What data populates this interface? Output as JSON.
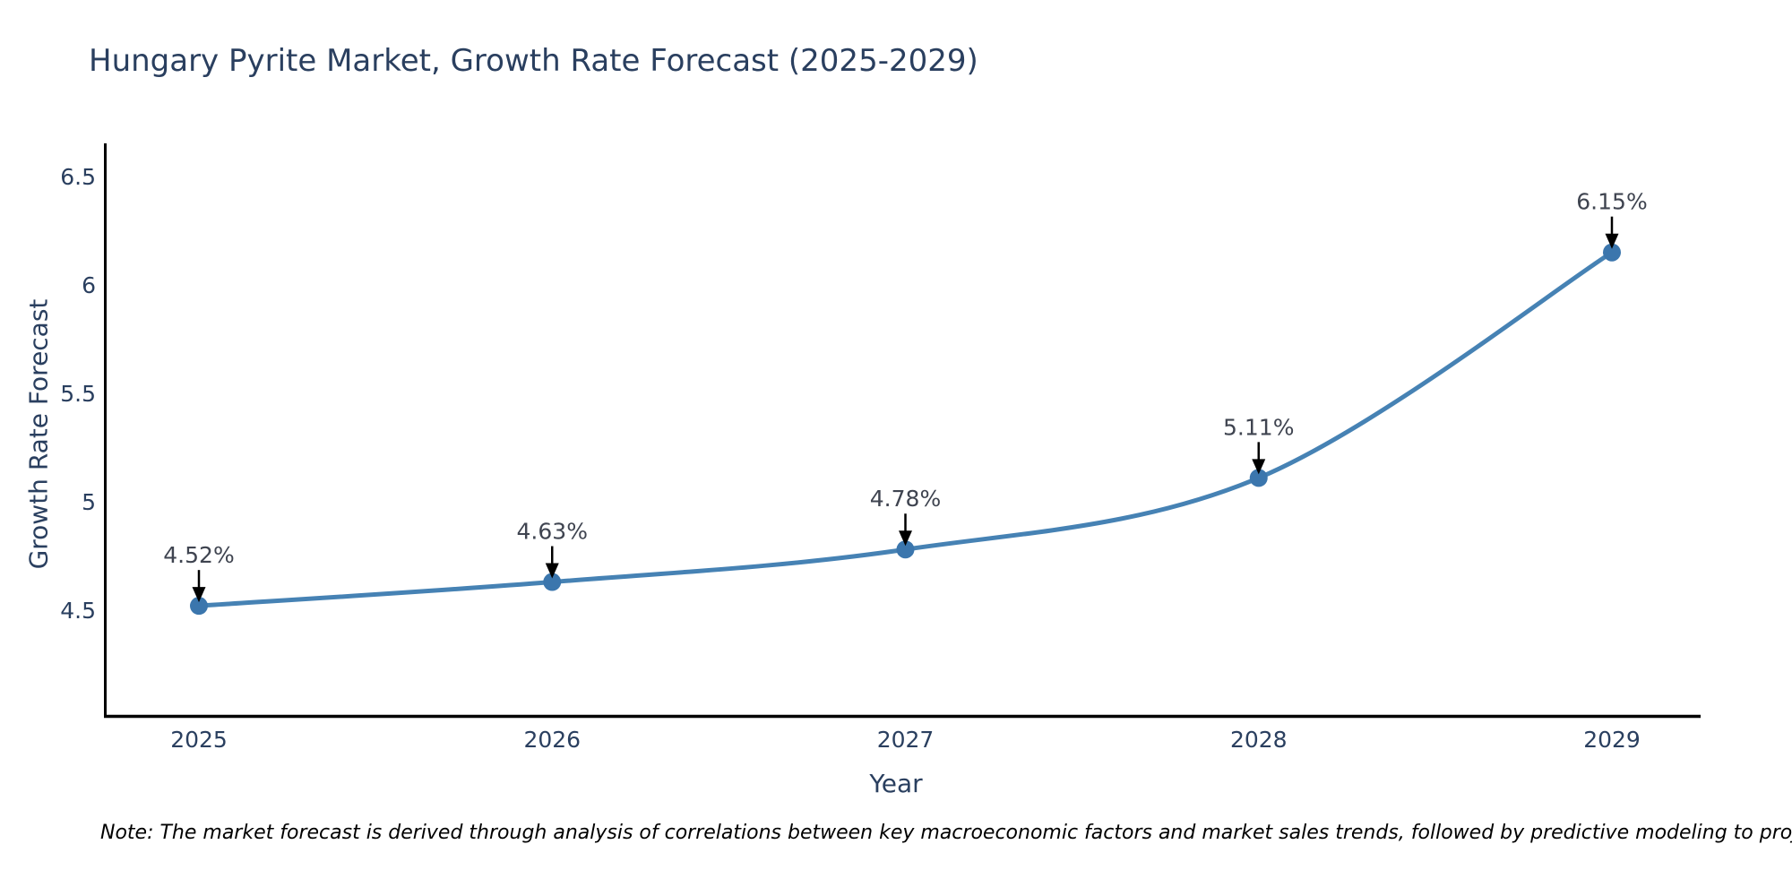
{
  "chart_data": {
    "type": "line",
    "title": "Hungary Pyrite Market, Growth Rate Forecast (2025-2029)",
    "xlabel": "Year",
    "ylabel": "Growth Rate Forecast",
    "x": [
      2025,
      2026,
      2027,
      2028,
      2029
    ],
    "values": [
      4.52,
      4.63,
      4.78,
      5.11,
      6.15
    ],
    "point_labels": [
      "4.52%",
      "4.63%",
      "4.78%",
      "5.11%",
      "6.15%"
    ],
    "x_tick_labels": [
      "2025",
      "2026",
      "2027",
      "2028",
      "2029"
    ],
    "y_ticks": [
      4.5,
      5,
      5.5,
      6,
      6.5
    ],
    "y_tick_labels": [
      "4.5",
      "5",
      "5.5",
      "6",
      "6.5"
    ],
    "ylim": [
      4.0,
      6.65
    ],
    "grid": false,
    "legend": "none",
    "line_shape": "spline",
    "line_color": "#4682b4",
    "marker_color": "#3b76ad",
    "arrow_color": "#000000",
    "axis_line_color": "#000000",
    "text_color": "#2a3f5f"
  },
  "footer": {
    "note": "Note: The market forecast is derived through analysis of correlations between key macroeconomic factors and market sales trends, followed by predictive modeling to project future sales"
  }
}
